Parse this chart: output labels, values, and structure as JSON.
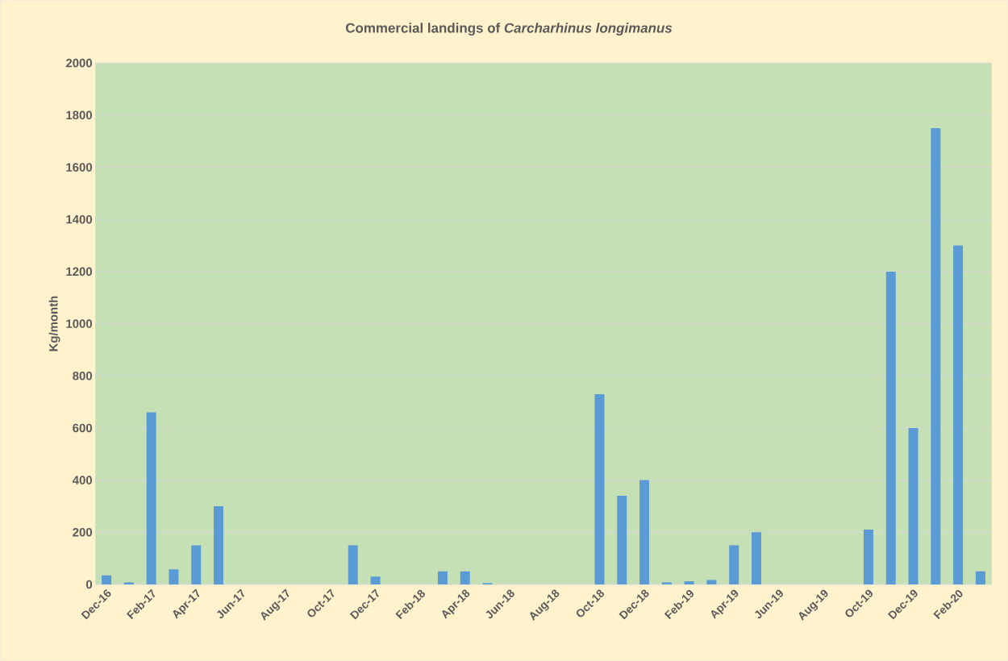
{
  "chart_data": {
    "type": "bar",
    "title": "Commercial landings of *Carcharhinus longimanus*",
    "ylabel": "Kg/month",
    "categories": [
      "Dec-16",
      null,
      "Feb-17",
      null,
      "Apr-17",
      null,
      "Jun-17",
      null,
      "Aug-17",
      null,
      "Oct-17",
      null,
      "Dec-17",
      null,
      "Feb-18",
      null,
      "Apr-18",
      null,
      "Jun-18",
      null,
      "Aug-18",
      null,
      "Oct-18",
      null,
      "Dec-18",
      null,
      "Feb-19",
      null,
      "Apr-19",
      null,
      "Jun-19",
      null,
      "Aug-19",
      null,
      "Oct-19",
      null,
      "Dec-19",
      null,
      "Feb-20",
      null
    ],
    "values": [
      35,
      8,
      660,
      58,
      150,
      300,
      0,
      0,
      0,
      0,
      0,
      150,
      30,
      0,
      0,
      50,
      50,
      5,
      0,
      0,
      0,
      0,
      730,
      340,
      400,
      8,
      12,
      17,
      150,
      200,
      0,
      0,
      0,
      0,
      210,
      1200,
      600,
      1750,
      1300,
      50
    ],
    "color": "#5b9bd5",
    "ylim": [
      0,
      2000
    ],
    "yticks": [
      0,
      200,
      400,
      600,
      800,
      1000,
      1200,
      1400,
      1600,
      1800,
      2000
    ],
    "grid": "y"
  }
}
